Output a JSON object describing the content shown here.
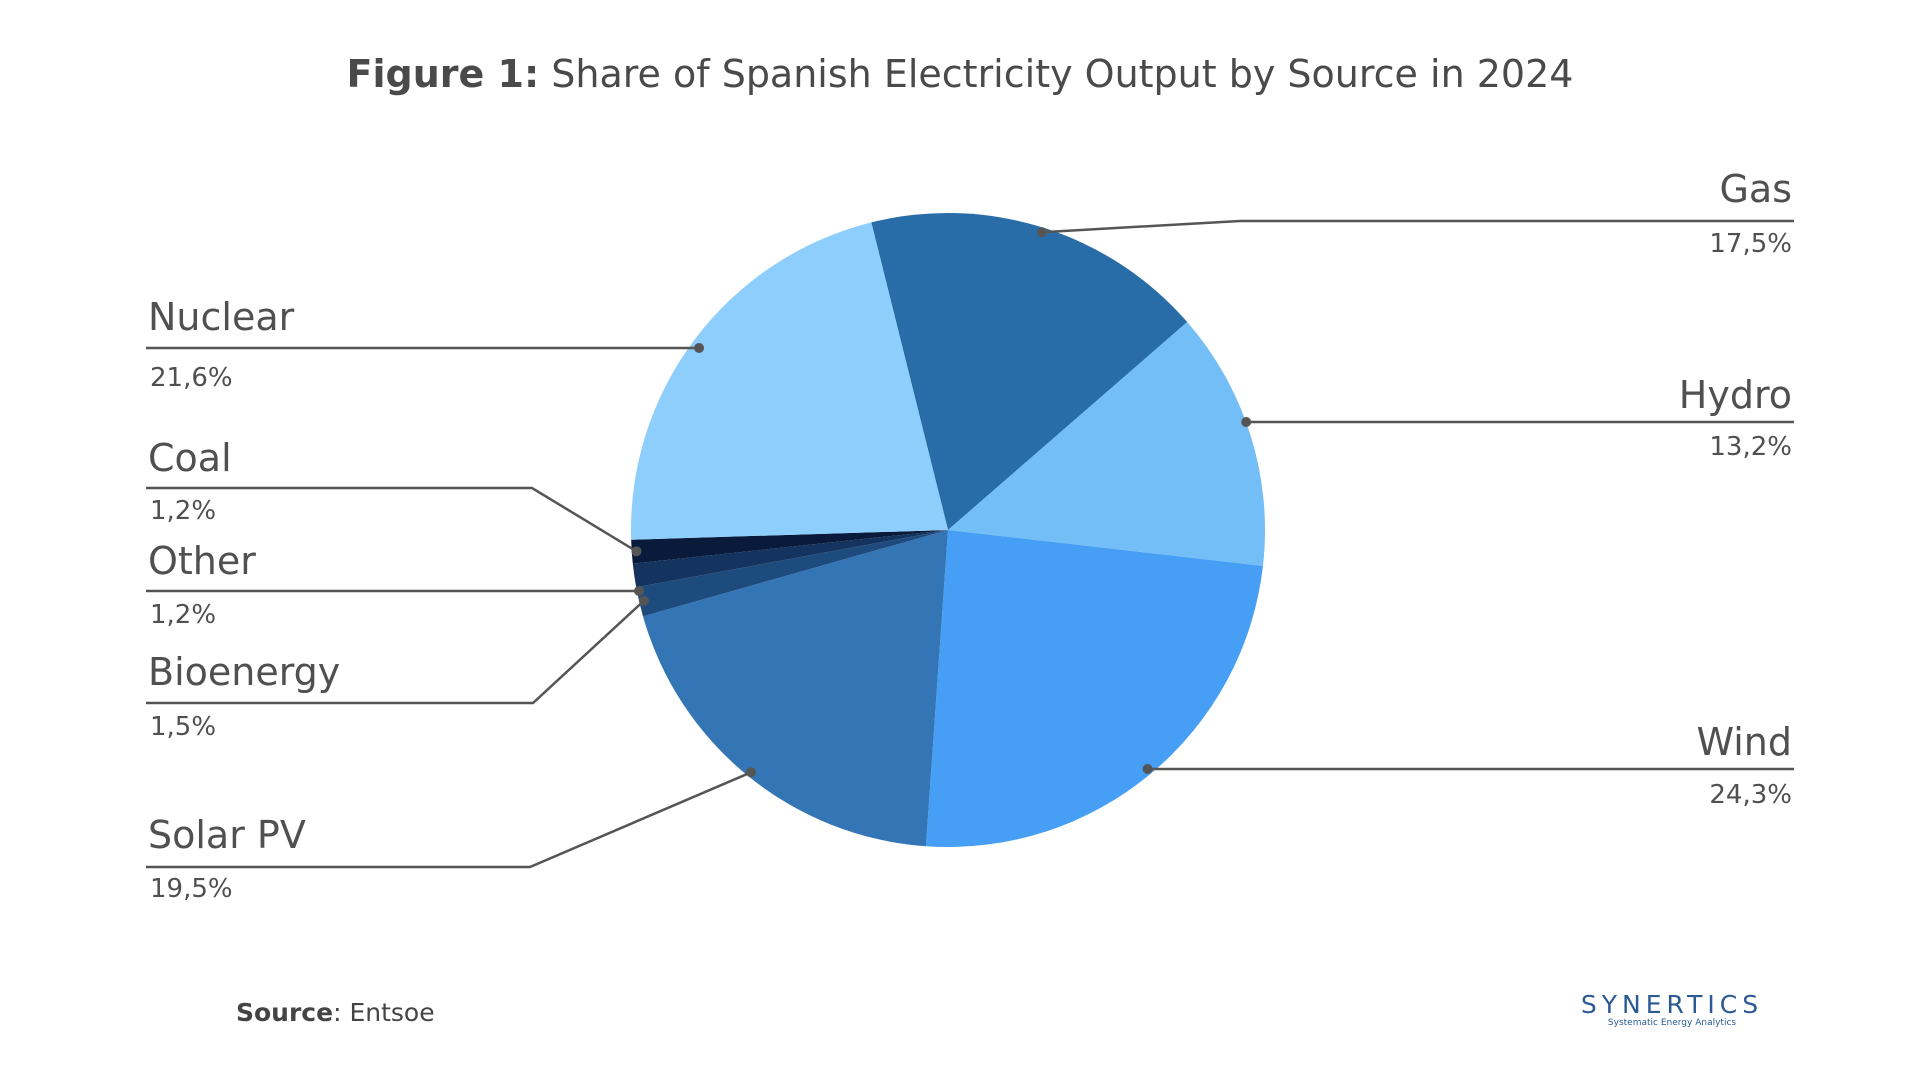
{
  "title": {
    "prefix": "Figure 1:",
    "text": "Share of Spanish Electricity Output by Source in 2024"
  },
  "chart_data": {
    "type": "pie",
    "title": "Figure 1: Share of Spanish Electricity Output by Source in 2024",
    "slices": [
      {
        "label": "Gas",
        "value": 17.5,
        "display": "17,5%",
        "color": "#286DA8"
      },
      {
        "label": "Hydro",
        "value": 13.2,
        "display": "13,2%",
        "color": "#73BEF6"
      },
      {
        "label": "Wind",
        "value": 24.3,
        "display": "24,3%",
        "color": "#469FF5"
      },
      {
        "label": "Solar PV",
        "value": 19.5,
        "display": "19,5%",
        "color": "#3475B6"
      },
      {
        "label": "Bioenergy",
        "value": 1.5,
        "display": "1,5%",
        "color": "#1E4B7E"
      },
      {
        "label": "Other",
        "value": 1.2,
        "display": "1,2%",
        "color": "#14335E"
      },
      {
        "label": "Coal",
        "value": 1.2,
        "display": "1,2%",
        "color": "#091A3A"
      },
      {
        "label": "Nuclear",
        "value": 21.6,
        "display": "21,6%",
        "color": "#8ECEFC"
      }
    ]
  },
  "footer": {
    "source_label": "Source",
    "source_value": ": Entsoe"
  },
  "logo": {
    "name": "SYNERTICS",
    "tagline": "Systematic Energy Analytics"
  }
}
